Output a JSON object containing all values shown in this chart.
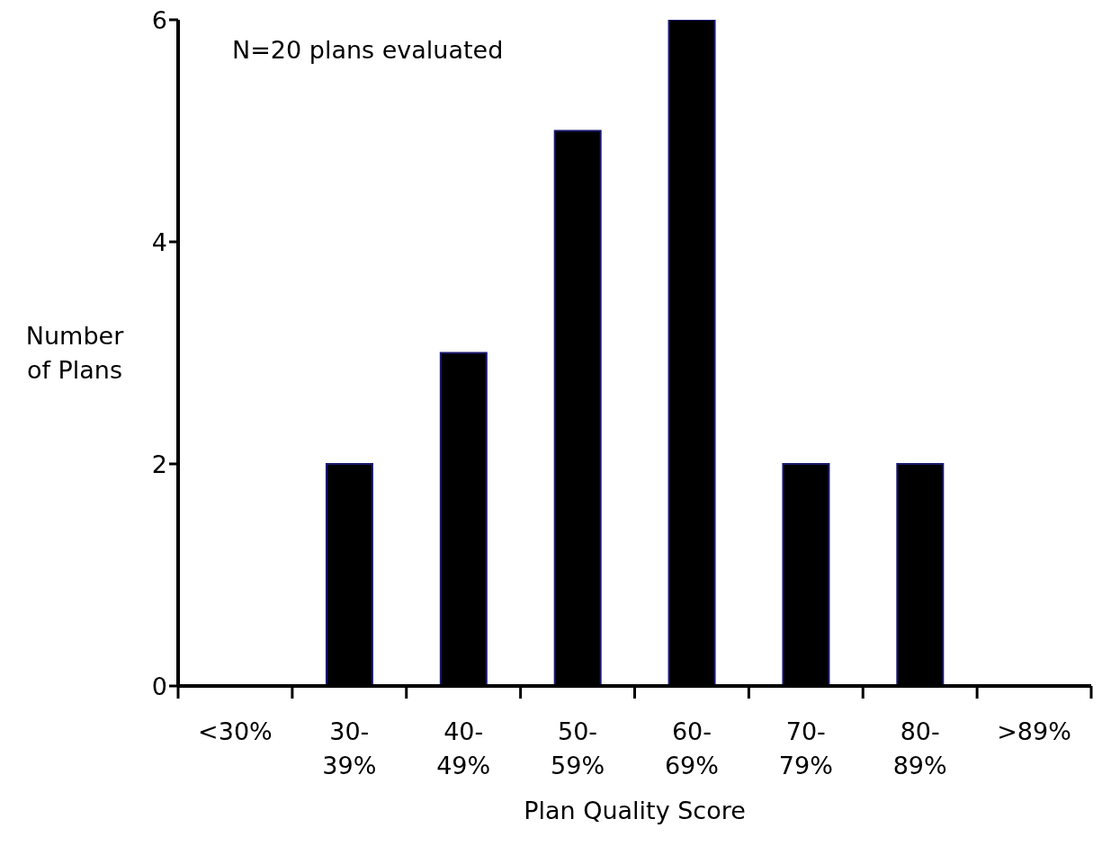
{
  "chart_data": {
    "type": "bar",
    "xlabel": "Plan Quality Score",
    "ylabel": "Number of Plans",
    "categories": [
      "<30%",
      "30-39%",
      "40-49%",
      "50-59%",
      "60-69%",
      "70-79%",
      "80-89%",
      ">89%"
    ],
    "values": [
      0,
      2,
      3,
      5,
      6,
      2,
      2,
      0
    ],
    "color": "#000000",
    "ylim": [
      0,
      6
    ],
    "yticks": [
      0,
      2,
      4,
      6
    ],
    "annotations": [
      "N=20 plans evaluated"
    ]
  }
}
